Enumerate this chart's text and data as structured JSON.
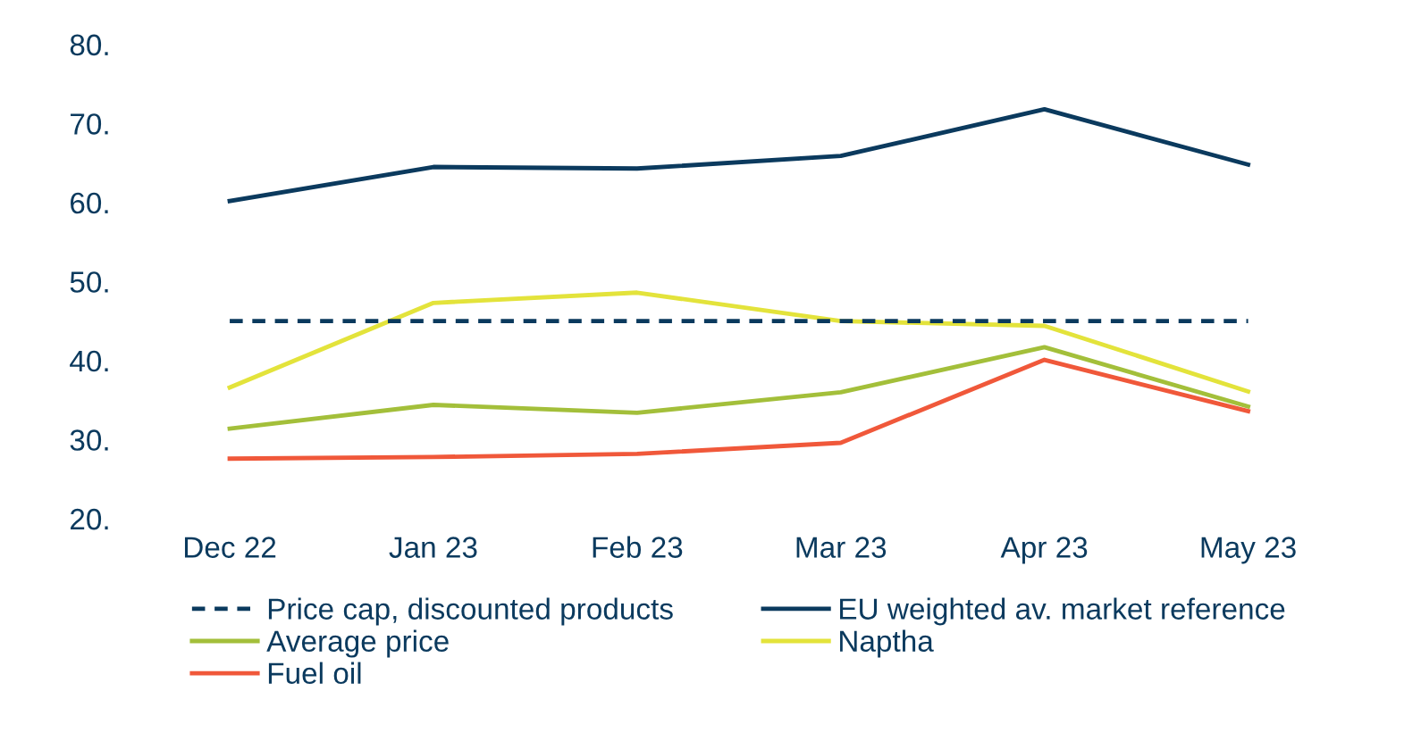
{
  "chart_data": {
    "type": "line",
    "categories": [
      "Dec 22",
      "Jan 23",
      "Feb 23",
      "Mar 23",
      "Apr 23",
      "May 23"
    ],
    "ylim": [
      20,
      80
    ],
    "yticks": [
      {
        "value": 20,
        "label": "20."
      },
      {
        "value": 30,
        "label": "30."
      },
      {
        "value": 40,
        "label": "40."
      },
      {
        "value": 50,
        "label": "50."
      },
      {
        "value": 60,
        "label": "60."
      },
      {
        "value": 70,
        "label": "70."
      },
      {
        "value": 80,
        "label": "80."
      }
    ],
    "grid": false,
    "legend": "bottom",
    "marker": "none",
    "series": [
      {
        "name": "Price cap, discounted products",
        "color": "#0b3a5e",
        "line_style": "dashed",
        "values": [
          45,
          45,
          45,
          45,
          45,
          45
        ]
      },
      {
        "name": "EU weighted av. market reference",
        "color": "#0b3a5e",
        "line_style": "solid",
        "values": [
          60.2,
          64.5,
          64.3,
          65.9,
          71.8,
          64.8
        ]
      },
      {
        "name": "Average price",
        "color": "#a3bf3a",
        "line_style": "solid",
        "values": [
          31.4,
          34.4,
          33.4,
          36.0,
          41.7,
          34.2
        ]
      },
      {
        "name": "Naptha",
        "color": "#e3e33b",
        "line_style": "solid",
        "values": [
          36.6,
          47.3,
          48.6,
          45.0,
          44.4,
          36.1
        ]
      },
      {
        "name": "Fuel oil",
        "color": "#f0583a",
        "line_style": "solid",
        "values": [
          27.6,
          27.8,
          28.2,
          29.6,
          40.1,
          33.6
        ]
      }
    ]
  }
}
